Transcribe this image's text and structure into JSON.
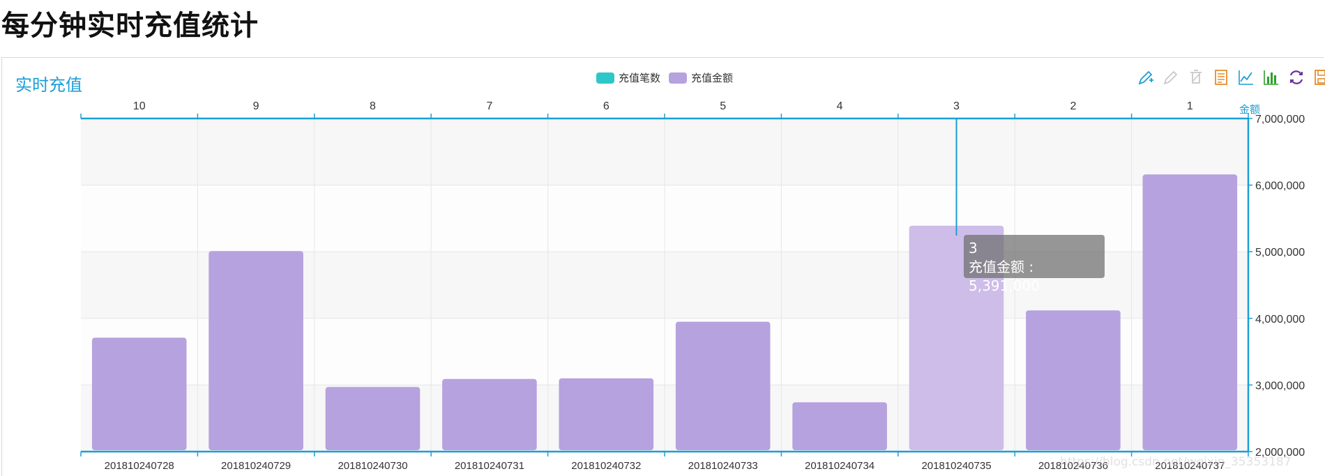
{
  "page": {
    "title": "每分钟实时充值统计"
  },
  "chart": {
    "title": "实时充值"
  },
  "legend": {
    "items": [
      {
        "label": "充值笔数",
        "color": "#2ec7c9"
      },
      {
        "label": "充值金额",
        "color": "#b6a2de"
      }
    ]
  },
  "toolbox": {
    "icons": [
      "mark-icon",
      "mark-undo-icon",
      "mark-clear-icon",
      "data-view-icon",
      "line-chart-icon",
      "bar-chart-icon",
      "restore-icon",
      "save-image-icon"
    ]
  },
  "tooltip": {
    "category": "3",
    "series_name": "充值金额",
    "value_text": "5,391,000"
  },
  "watermark": {
    "text": "https://blog.csdn.net/weixin_35353187"
  },
  "colors": {
    "bar": "#b6a2de",
    "bar_highlight": "#cdbde8",
    "axis": "#1a9ed6",
    "grid_band": "#f7f7f7",
    "grid_line": "#e6e6e6"
  },
  "chart_data": {
    "type": "bar",
    "categories": [
      "201810240728",
      "201810240729",
      "201810240730",
      "201810240731",
      "201810240732",
      "201810240733",
      "201810240734",
      "201810240735",
      "201810240736",
      "201810240737"
    ],
    "top_categories": [
      "10",
      "9",
      "8",
      "7",
      "6",
      "5",
      "4",
      "3",
      "2",
      "1"
    ],
    "series": [
      {
        "name": "充值金额",
        "values": [
          3710000,
          5010000,
          2970000,
          3090000,
          3100000,
          3950000,
          2740000,
          5391000,
          4120000,
          6160000
        ]
      }
    ],
    "y_axis": {
      "name": "金额",
      "ylim": [
        2000000,
        7000000
      ],
      "ticks": [
        2000000,
        3000000,
        4000000,
        5000000,
        6000000,
        7000000
      ],
      "tick_labels": [
        "2,000,000",
        "3,000,000",
        "4,000,000",
        "5,000,000",
        "6,000,000",
        "7,000,000"
      ]
    },
    "highlight_index": 7,
    "grid": true
  }
}
